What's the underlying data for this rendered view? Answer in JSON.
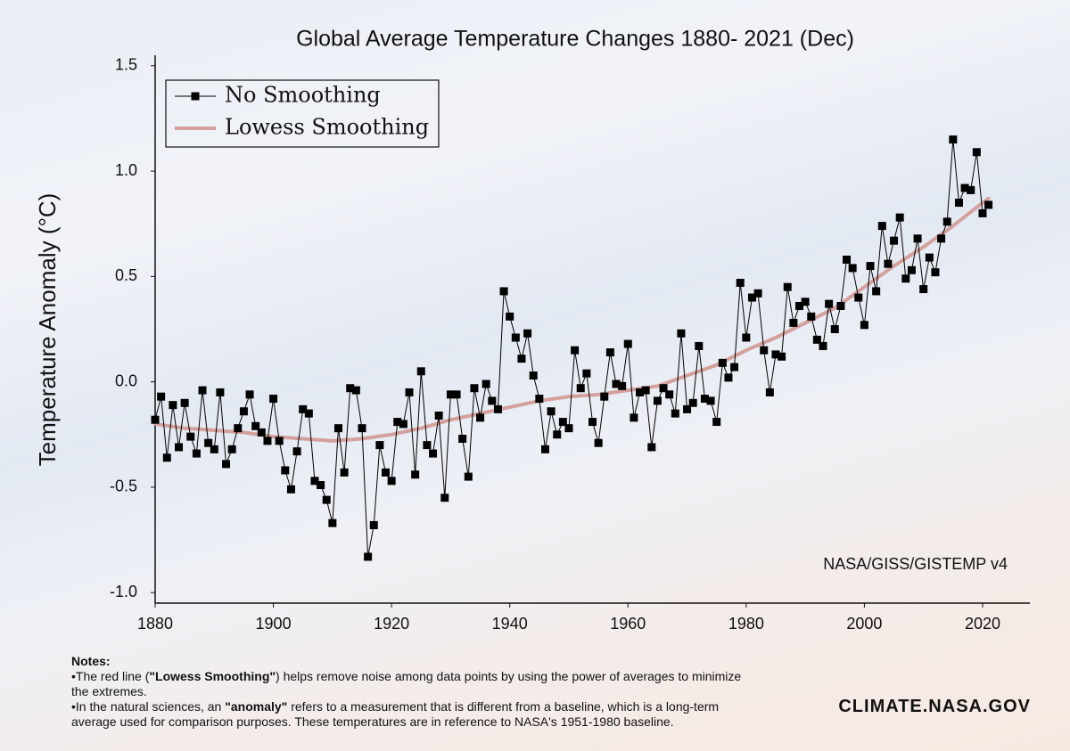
{
  "chart_data": {
    "type": "line",
    "title": "Global Average Temperature Changes 1880- 2021 (Dec)",
    "ylabel": "Temperature Anomaly (°C)",
    "source": "NASA/GISS/GISTEMP v4",
    "xlim": [
      1880,
      2028
    ],
    "ylim": [
      -1.05,
      1.55
    ],
    "xticks": [
      1880,
      1900,
      1920,
      1940,
      1960,
      1980,
      2000,
      2020
    ],
    "yticks": [
      {
        "value": -1.0,
        "label": "-1.0"
      },
      -0.5,
      {
        "value": 0.0,
        "label": "0.0"
      },
      0.5,
      {
        "value": 1.0,
        "label": "1.0"
      },
      1.5
    ],
    "legend": "upper left",
    "series": [
      {
        "name": "No Smoothing",
        "color": "#000000",
        "marker": "square",
        "x": [
          1880,
          1881,
          1882,
          1883,
          1884,
          1885,
          1886,
          1887,
          1888,
          1889,
          1890,
          1891,
          1892,
          1893,
          1894,
          1895,
          1896,
          1897,
          1898,
          1899,
          1900,
          1901,
          1902,
          1903,
          1904,
          1905,
          1906,
          1907,
          1908,
          1909,
          1910,
          1911,
          1912,
          1913,
          1914,
          1915,
          1916,
          1917,
          1918,
          1919,
          1920,
          1921,
          1922,
          1923,
          1924,
          1925,
          1926,
          1927,
          1928,
          1929,
          1930,
          1931,
          1932,
          1933,
          1934,
          1935,
          1936,
          1937,
          1938,
          1939,
          1940,
          1941,
          1942,
          1943,
          1944,
          1945,
          1946,
          1947,
          1948,
          1949,
          1950,
          1951,
          1952,
          1953,
          1954,
          1955,
          1956,
          1957,
          1958,
          1959,
          1960,
          1961,
          1962,
          1963,
          1964,
          1965,
          1966,
          1967,
          1968,
          1969,
          1970,
          1971,
          1972,
          1973,
          1974,
          1975,
          1976,
          1977,
          1978,
          1979,
          1980,
          1981,
          1982,
          1983,
          1984,
          1985,
          1986,
          1987,
          1988,
          1989,
          1990,
          1991,
          1992,
          1993,
          1994,
          1995,
          1996,
          1997,
          1998,
          1999,
          2000,
          2001,
          2002,
          2003,
          2004,
          2005,
          2006,
          2007,
          2008,
          2009,
          2010,
          2011,
          2012,
          2013,
          2014,
          2015,
          2016,
          2017,
          2018,
          2019,
          2020,
          2021
        ],
        "values": [
          -0.18,
          -0.07,
          -0.36,
          -0.11,
          -0.31,
          -0.1,
          -0.26,
          -0.34,
          -0.04,
          -0.29,
          -0.32,
          -0.05,
          -0.39,
          -0.32,
          -0.22,
          -0.14,
          -0.06,
          -0.21,
          -0.24,
          -0.28,
          -0.08,
          -0.28,
          -0.42,
          -0.51,
          -0.33,
          -0.13,
          -0.15,
          -0.47,
          -0.49,
          -0.56,
          -0.67,
          -0.22,
          -0.43,
          -0.03,
          -0.04,
          -0.22,
          -0.83,
          -0.68,
          -0.3,
          -0.43,
          -0.47,
          -0.19,
          -0.2,
          -0.05,
          -0.44,
          0.05,
          -0.3,
          -0.34,
          -0.16,
          -0.55,
          -0.06,
          -0.06,
          -0.27,
          -0.45,
          -0.03,
          -0.17,
          -0.01,
          -0.09,
          -0.13,
          0.43,
          0.31,
          0.21,
          0.11,
          0.23,
          0.03,
          -0.08,
          -0.32,
          -0.14,
          -0.25,
          -0.19,
          -0.22,
          0.15,
          -0.03,
          0.04,
          -0.19,
          -0.29,
          -0.07,
          0.14,
          -0.01,
          -0.02,
          0.18,
          -0.17,
          -0.05,
          -0.04,
          -0.31,
          -0.09,
          -0.03,
          -0.06,
          -0.15,
          0.23,
          -0.13,
          -0.1,
          0.17,
          -0.08,
          -0.09,
          -0.19,
          0.09,
          0.02,
          0.07,
          0.47,
          0.21,
          0.4,
          0.42,
          0.15,
          -0.05,
          0.13,
          0.12,
          0.45,
          0.28,
          0.36,
          0.38,
          0.31,
          0.2,
          0.17,
          0.37,
          0.25,
          0.36,
          0.58,
          0.54,
          0.4,
          0.27,
          0.55,
          0.43,
          0.74,
          0.56,
          0.67,
          0.78,
          0.49,
          0.53,
          0.68,
          0.44,
          0.59,
          0.52,
          0.68,
          0.76,
          1.15,
          0.85,
          0.92,
          0.91,
          1.09,
          0.8,
          0.84
        ]
      },
      {
        "name": "Lowess Smoothing",
        "color": "#d4a09c",
        "x": [
          1880,
          1885,
          1890,
          1895,
          1900,
          1905,
          1910,
          1915,
          1920,
          1925,
          1930,
          1935,
          1940,
          1945,
          1950,
          1955,
          1960,
          1965,
          1970,
          1975,
          1980,
          1985,
          1990,
          1995,
          2000,
          2005,
          2010,
          2015,
          2020,
          2021
        ],
        "values": [
          -0.2,
          -0.22,
          -0.23,
          -0.24,
          -0.26,
          -0.27,
          -0.28,
          -0.27,
          -0.25,
          -0.22,
          -0.18,
          -0.15,
          -0.12,
          -0.09,
          -0.07,
          -0.06,
          -0.04,
          -0.02,
          0.03,
          0.08,
          0.15,
          0.21,
          0.28,
          0.35,
          0.45,
          0.55,
          0.64,
          0.74,
          0.85,
          0.87
        ]
      }
    ]
  },
  "notes": {
    "heading": "Notes:",
    "items": [
      [
        "The red line (",
        "\"Lowess Smoothing\"",
        ") helps remove noise among data points by using the power of averages to minimize the extremes."
      ],
      [
        "In the natural sciences, an ",
        "\"anomaly\"",
        " refers to a measurement that is different from a baseline, which is a long-term average used for comparison purposes. These temperatures are in reference to NASA's 1951-1980 baseline."
      ]
    ]
  },
  "brand": "CLIMATE.NASA.GOV"
}
